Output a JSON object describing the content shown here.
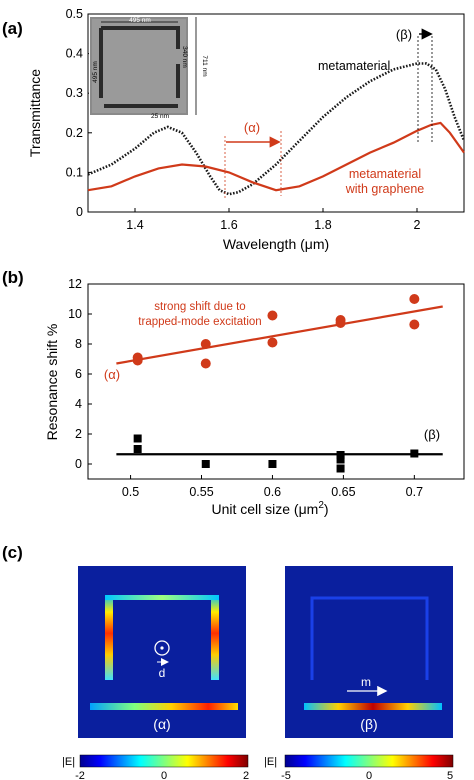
{
  "panels": {
    "a": {
      "label": "(a)",
      "ylabel": "Transmittance",
      "xlabel": "Wavelength (μm)",
      "curve_labels": [
        "metamaterial",
        "metamaterial",
        "with graphene"
      ],
      "alpha_label": "(α)",
      "beta_label": "(β)",
      "inset_dims": [
        "495 nm",
        "495 nm",
        "340 nm",
        "711 nm",
        "25 nm"
      ],
      "xticks": [
        "1.4",
        "1.6",
        "1.8",
        "2"
      ],
      "yticks": [
        "0",
        "0.1",
        "0.2",
        "0.3",
        "0.4",
        "0.5"
      ]
    },
    "b": {
      "label": "(b)",
      "ylabel": "Resonance shift %",
      "xlabel": "Unit cell size (μm",
      "xlabel_sup": "2",
      "xlabel_end": ")",
      "annotation": [
        "strong shift due to",
        "trapped-mode excitation"
      ],
      "alpha_label": "(α)",
      "beta_label": "(β)",
      "xticks": [
        "0.5",
        "0.55",
        "0.6",
        "0.65",
        "0.7"
      ],
      "yticks": [
        "0",
        "2",
        "4",
        "6",
        "8",
        "10",
        "12"
      ]
    },
    "c": {
      "label": "(c)",
      "left_map_label": "(α)",
      "right_map_label": "(β)",
      "d_label": "d",
      "m_label": "m",
      "colorbar_title": "|E|",
      "left_ticks": [
        "-2",
        "0",
        "2"
      ],
      "right_ticks": [
        "-5",
        "0",
        "5"
      ]
    }
  },
  "colors": {
    "metamaterial": "#1a1a1a",
    "graphene": "#d03a1a",
    "field_background": "#0a1f9e"
  },
  "chart_data": [
    {
      "type": "line",
      "title": "",
      "xlabel": "Wavelength (μm)",
      "ylabel": "Transmittance",
      "xlim": [
        1.3,
        2.1
      ],
      "ylim": [
        0,
        0.5
      ],
      "series": [
        {
          "name": "metamaterial",
          "style": "dotted",
          "x": [
            1.3,
            1.35,
            1.4,
            1.44,
            1.47,
            1.5,
            1.53,
            1.56,
            1.58,
            1.6,
            1.62,
            1.65,
            1.7,
            1.75,
            1.8,
            1.85,
            1.9,
            1.95,
            2.0,
            2.02,
            2.04,
            2.06,
            2.08,
            2.1
          ],
          "y": [
            0.095,
            0.12,
            0.16,
            0.2,
            0.215,
            0.2,
            0.15,
            0.09,
            0.055,
            0.045,
            0.05,
            0.07,
            0.12,
            0.18,
            0.24,
            0.29,
            0.33,
            0.36,
            0.375,
            0.375,
            0.36,
            0.31,
            0.24,
            0.18
          ]
        },
        {
          "name": "metamaterial with graphene",
          "style": "solid",
          "x": [
            1.3,
            1.35,
            1.4,
            1.45,
            1.5,
            1.55,
            1.6,
            1.65,
            1.7,
            1.75,
            1.8,
            1.85,
            1.9,
            1.95,
            2.0,
            2.03,
            2.05,
            2.07,
            2.1
          ],
          "y": [
            0.055,
            0.065,
            0.09,
            0.11,
            0.12,
            0.115,
            0.1,
            0.075,
            0.055,
            0.065,
            0.09,
            0.12,
            0.15,
            0.175,
            0.205,
            0.22,
            0.225,
            0.2,
            0.15
          ]
        }
      ],
      "markers": {
        "alpha": [
          1.6,
          1.72
        ],
        "beta": [
          2.02,
          2.06
        ]
      }
    },
    {
      "type": "scatter",
      "title": "",
      "xlabel": "Unit cell size (μm2)",
      "ylabel": "Resonance shift %",
      "xlim": [
        0.47,
        0.735
      ],
      "ylim": [
        -1,
        12
      ],
      "series": [
        {
          "name": "(α)",
          "marker": "circle",
          "x": [
            0.505,
            0.505,
            0.553,
            0.553,
            0.6,
            0.6,
            0.648,
            0.648,
            0.7,
            0.7
          ],
          "y": [
            7.1,
            6.9,
            8.0,
            6.7,
            9.9,
            8.1,
            9.6,
            9.4,
            11.0,
            9.3
          ],
          "fit": [
            [
              0.49,
              6.7
            ],
            [
              0.72,
              10.5
            ]
          ]
        },
        {
          "name": "(β)",
          "marker": "square",
          "x": [
            0.505,
            0.505,
            0.553,
            0.6,
            0.648,
            0.648,
            0.648,
            0.7
          ],
          "y": [
            1.7,
            1.0,
            0.0,
            0.0,
            0.6,
            0.3,
            -0.3,
            0.7
          ],
          "fit": [
            [
              0.49,
              0.65
            ],
            [
              0.72,
              0.65
            ]
          ]
        }
      ]
    }
  ]
}
